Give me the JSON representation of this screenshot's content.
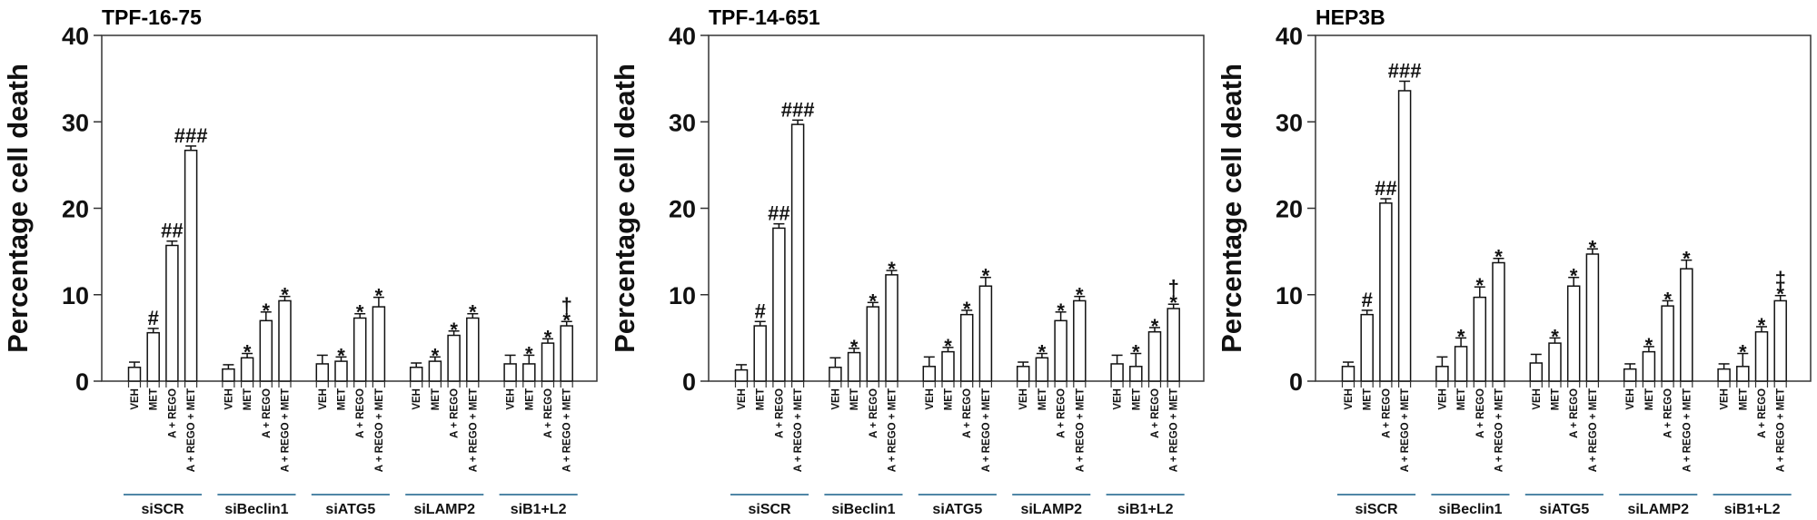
{
  "chart_data": [
    {
      "type": "bar",
      "title": "TPF-16-75",
      "ylabel": "Percentage cell death",
      "ylim": [
        0,
        40
      ],
      "yticks": [
        0,
        10,
        20,
        30,
        40
      ],
      "groups": [
        "siSCR",
        "siBeclin1",
        "siATG5",
        "siLAMP2",
        "siB1+L2"
      ],
      "categories": [
        "VEH",
        "MET",
        "A + REGO",
        "A + REGO + MET"
      ],
      "values": [
        [
          1.6,
          5.6,
          15.7,
          26.7
        ],
        [
          1.4,
          2.7,
          7.0,
          9.3
        ],
        [
          2.0,
          2.3,
          7.3,
          8.6
        ],
        [
          1.6,
          2.3,
          5.3,
          7.3
        ],
        [
          2.0,
          2.0,
          4.4,
          6.4
        ]
      ],
      "errors": [
        [
          0.6,
          0.5,
          0.5,
          0.5
        ],
        [
          0.5,
          0.5,
          1.0,
          0.5
        ],
        [
          1.0,
          0.5,
          0.5,
          1.1
        ],
        [
          0.5,
          0.5,
          0.5,
          0.5
        ],
        [
          1.0,
          1.0,
          0.5,
          0.5
        ]
      ],
      "annotations": [
        [
          "",
          "#",
          "##",
          "###"
        ],
        [
          "",
          "*",
          "*",
          "*"
        ],
        [
          "",
          "*",
          "*",
          "*"
        ],
        [
          "",
          "*",
          "*",
          "*"
        ],
        [
          "",
          "*",
          "*",
          "*†"
        ]
      ]
    },
    {
      "type": "bar",
      "title": "TPF-14-651",
      "ylabel": "Percentage cell death",
      "ylim": [
        0,
        40
      ],
      "yticks": [
        0,
        10,
        20,
        30,
        40
      ],
      "groups": [
        "siSCR",
        "siBeclin1",
        "siATG5",
        "siLAMP2",
        "siB1+L2"
      ],
      "categories": [
        "VEH",
        "MET",
        "A + REGO",
        "A + REGO + MET"
      ],
      "values": [
        [
          1.3,
          6.4,
          17.7,
          29.7
        ],
        [
          1.6,
          3.3,
          8.6,
          12.3
        ],
        [
          1.7,
          3.4,
          7.7,
          11.0
        ],
        [
          1.7,
          2.7,
          7.0,
          9.3
        ],
        [
          2.0,
          1.7,
          5.7,
          8.4
        ]
      ],
      "errors": [
        [
          0.6,
          0.5,
          0.5,
          0.5
        ],
        [
          1.1,
          0.5,
          0.5,
          0.5
        ],
        [
          1.1,
          0.5,
          0.5,
          1.0
        ],
        [
          0.5,
          0.5,
          1.0,
          0.5
        ],
        [
          1.0,
          1.5,
          0.5,
          0.5
        ]
      ],
      "annotations": [
        [
          "",
          "#",
          "##",
          "###"
        ],
        [
          "",
          "*",
          "*",
          "*"
        ],
        [
          "",
          "*",
          "*",
          "*"
        ],
        [
          "",
          "*",
          "*",
          "*"
        ],
        [
          "",
          "*",
          "*",
          "*†"
        ]
      ]
    },
    {
      "type": "bar",
      "title": "HEP3B",
      "ylabel": "Percentage cell death",
      "ylim": [
        0,
        40
      ],
      "yticks": [
        0,
        10,
        20,
        30,
        40
      ],
      "groups": [
        "siSCR",
        "siBeclin1",
        "siATG5",
        "siLAMP2",
        "siB1+L2"
      ],
      "categories": [
        "VEH",
        "MET",
        "A + REGO",
        "A + REGO + MET"
      ],
      "values": [
        [
          1.7,
          7.7,
          20.6,
          33.6
        ],
        [
          1.7,
          4.0,
          9.7,
          13.7
        ],
        [
          2.1,
          4.4,
          11.0,
          14.7
        ],
        [
          1.4,
          3.4,
          8.7,
          13.0
        ],
        [
          1.4,
          1.7,
          5.7,
          9.3
        ]
      ],
      "errors": [
        [
          0.5,
          0.5,
          0.5,
          1.1
        ],
        [
          1.1,
          1.0,
          1.2,
          0.5
        ],
        [
          1.0,
          0.6,
          1.0,
          0.6
        ],
        [
          0.6,
          0.6,
          0.6,
          1.0
        ],
        [
          0.6,
          1.5,
          0.6,
          0.6
        ]
      ],
      "annotations": [
        [
          "",
          "#",
          "##",
          "###"
        ],
        [
          "",
          "*",
          "*",
          "*"
        ],
        [
          "",
          "*",
          "*",
          "*"
        ],
        [
          "",
          "*",
          "*",
          "*"
        ],
        [
          "",
          "*",
          "*",
          "*‡"
        ]
      ]
    }
  ],
  "colors": {
    "bar_fill": "#ffffff",
    "bar_stroke": "#111111",
    "group_underline": "#4f86a6"
  }
}
